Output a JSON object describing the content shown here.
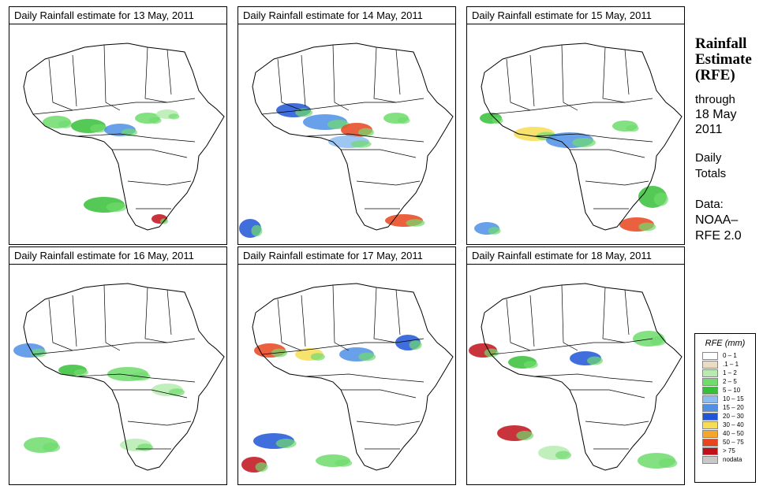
{
  "panels": [
    {
      "title": "Daily Rainfall estimate for  13 May, 2011"
    },
    {
      "title": "Daily Rainfall estimate for  14 May, 2011"
    },
    {
      "title": "Daily Rainfall estimate for  15 May, 2011"
    },
    {
      "title": "Daily Rainfall estimate for  16 May, 2011"
    },
    {
      "title": "Daily Rainfall estimate for  17 May, 2011"
    },
    {
      "title": "Daily Rainfall estimate for  18 May, 2011"
    }
  ],
  "sidebar": {
    "title_line1": "Rainfall",
    "title_line2": "Estimate",
    "title_line3": "(RFE)",
    "through": "through",
    "date_line1": "18 May",
    "date_line2": "2011",
    "totals_line1": "Daily",
    "totals_line2": "Totals",
    "data_line1": "Data:",
    "data_line2": "NOAA–",
    "data_line3": "RFE 2.0"
  },
  "legend": {
    "title": "RFE (mm)",
    "items": [
      {
        "label": "0 – 1",
        "color": "#ffffff"
      },
      {
        "label": ".1 – 1",
        "color": "#e9dcc3"
      },
      {
        "label": "1 – 2",
        "color": "#b6ecb0"
      },
      {
        "label": "2 – 5",
        "color": "#6fdc6c"
      },
      {
        "label": "5 – 10",
        "color": "#36bf38"
      },
      {
        "label": "10 – 15",
        "color": "#8dbcf0"
      },
      {
        "label": "15 – 20",
        "color": "#4f8fe6"
      },
      {
        "label": "20 – 30",
        "color": "#1f55d6"
      },
      {
        "label": "30 – 40",
        "color": "#f7dd55"
      },
      {
        "label": "40 – 50",
        "color": "#f4a52a"
      },
      {
        "label": "50 – 75",
        "color": "#e8451f"
      },
      {
        "label": "> 75",
        "color": "#c0101a"
      },
      {
        "label": "nodata",
        "color": "#c8c8c8"
      }
    ]
  }
}
